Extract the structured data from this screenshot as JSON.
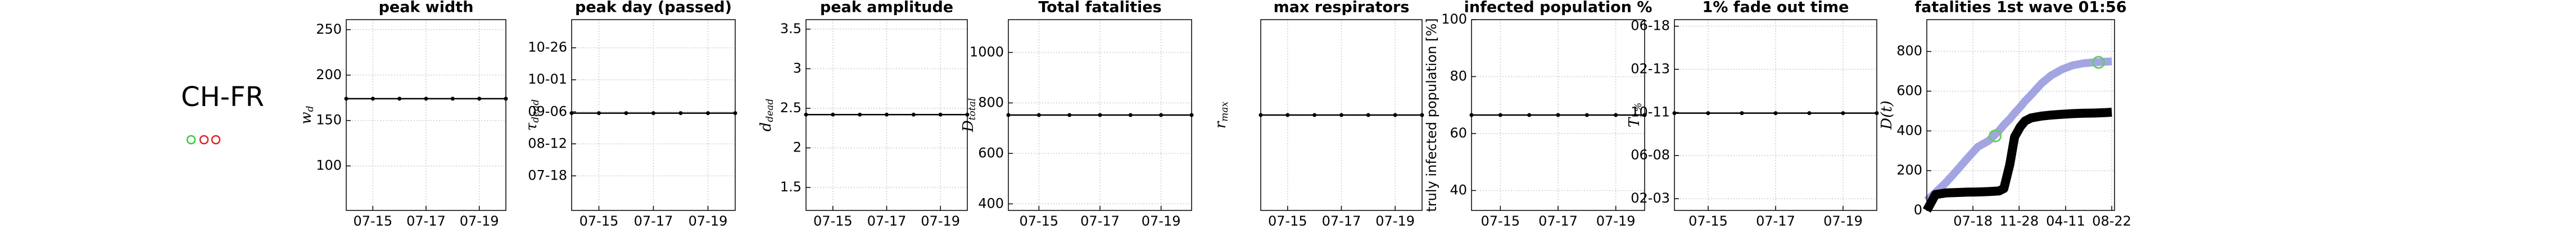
{
  "label": "CH-FR",
  "chart_data": [
    {
      "type": "line",
      "title": "peak width",
      "ylabel": [
        "w",
        "d"
      ],
      "x": [
        "07-14",
        "07-15",
        "07-16",
        "07-17",
        "07-18",
        "07-19",
        "07-20"
      ],
      "series": [
        {
          "color": "#000000",
          "markers": true,
          "values": [
            174,
            174,
            174,
            174,
            174,
            174,
            174
          ]
        }
      ],
      "xlim": [
        "07-14",
        "07-20"
      ],
      "xticks": [
        "07-15",
        "07-17",
        "07-19"
      ],
      "ylim": [
        51,
        261
      ],
      "yticks": [
        100,
        150,
        200,
        250
      ],
      "grid": true
    },
    {
      "type": "line",
      "title": "peak day (passed)",
      "ylabel": [
        "τ",
        "dead"
      ],
      "x": [
        "07-14",
        "07-15",
        "07-16",
        "07-17",
        "07-18",
        "07-19",
        "07-20"
      ],
      "series": [
        {
          "color": "#000000",
          "markers": true,
          "values": [
            "09-05",
            "09-05",
            "09-05",
            "09-05",
            "09-05",
            "09-05",
            "09-05"
          ]
        }
      ],
      "xlim": [
        "07-14",
        "07-20"
      ],
      "xticks": [
        "07-15",
        "07-17",
        "07-19"
      ],
      "ylim": [
        "06-21",
        "11-17"
      ],
      "yticks": [
        "07-18",
        "08-12",
        "09-06",
        "10-01",
        "10-26"
      ],
      "grid": true
    },
    {
      "type": "line",
      "title": "peak amplitude",
      "ylabel": [
        "d",
        "dead"
      ],
      "x": [
        "07-14",
        "07-15",
        "07-16",
        "07-17",
        "07-18",
        "07-19",
        "07-20"
      ],
      "series": [
        {
          "color": "#000000",
          "markers": true,
          "values": [
            2.42,
            2.42,
            2.42,
            2.42,
            2.42,
            2.42,
            2.42
          ]
        }
      ],
      "xlim": [
        "07-14",
        "07-20"
      ],
      "xticks": [
        "07-15",
        "07-17",
        "07-19"
      ],
      "ylim": [
        1.21,
        3.62
      ],
      "yticks": [
        1.5,
        2,
        2.5,
        3,
        3.5
      ],
      "grid": true
    },
    {
      "type": "line",
      "title": "Total fatalities",
      "ylabel": [
        "D",
        "total"
      ],
      "x": [
        "07-14",
        "07-15",
        "07-16",
        "07-17",
        "07-18",
        "07-19",
        "07-20"
      ],
      "series": [
        {
          "color": "#000000",
          "markers": true,
          "values": [
            752,
            752,
            752,
            752,
            752,
            752,
            752
          ]
        }
      ],
      "xlim": [
        "07-14",
        "07-20"
      ],
      "xticks": [
        "07-15",
        "07-17",
        "07-19"
      ],
      "ylim": [
        374,
        1130
      ],
      "yticks": [
        400,
        600,
        800,
        1000
      ],
      "grid": true
    },
    {
      "type": "line",
      "title": "max respirators",
      "ylabel": [
        "r",
        "max"
      ],
      "x": [
        "07-14",
        "07-15",
        "07-16",
        "07-17",
        "07-18",
        "07-19",
        "07-20"
      ],
      "series": [
        {
          "color": "#000000",
          "markers": true,
          "values": [
            0.5,
            0.5,
            0.5,
            0.5,
            0.5,
            0.5,
            0.5
          ]
        }
      ],
      "xlim": [
        "07-14",
        "07-20"
      ],
      "xticks": [
        "07-15",
        "07-17",
        "07-19"
      ],
      "ylim": [
        0,
        1
      ],
      "yticks": [],
      "grid": true
    },
    {
      "type": "line",
      "title": "infected population %",
      "ylabel": [
        "truly infected population [%]"
      ],
      "x": [
        "07-14",
        "07-15",
        "07-16",
        "07-17",
        "07-18",
        "07-19",
        "07-20"
      ],
      "series": [
        {
          "color": "#000000",
          "markers": true,
          "values": [
            66.5,
            66.5,
            66.5,
            66.5,
            66.5,
            66.5,
            66.5
          ]
        }
      ],
      "xlim": [
        "07-14",
        "07-20"
      ],
      "xticks": [
        "07-15",
        "07-17",
        "07-19"
      ],
      "ylim": [
        33,
        100
      ],
      "yticks": [
        40,
        60,
        80,
        100
      ],
      "grid": true
    },
    {
      "type": "line",
      "title": "1% fade out time",
      "ylabel": [
        "T",
        "1%"
      ],
      "x": [
        "07-14",
        "07-15",
        "07-16",
        "07-17",
        "07-18",
        "07-19",
        "07-20"
      ],
      "series": [
        {
          "color": "#000000",
          "markers": true,
          "values": [
            "10-09",
            "10-09",
            "10-09",
            "10-09",
            "10-09",
            "10-09",
            "10-09"
          ]
        }
      ],
      "xlim": [
        "07-14",
        "07-20"
      ],
      "xticks": [
        "07-15",
        "07-17",
        "07-19"
      ],
      "ylim": [
        "12-31",
        "07-07"
      ],
      "yticks": [
        "02-03",
        "06-08",
        "10-11",
        "02-13",
        "06-18"
      ],
      "grid": true
    },
    {
      "type": "line",
      "title": "fatalities 1st wave 01:56",
      "ylabel": [
        "D(t)"
      ],
      "x": [
        "03-07",
        "04-01",
        "05-01",
        "06-01",
        "07-01",
        "08-01",
        "09-01",
        "10-01",
        "10-15",
        "11-01",
        "11-15",
        "12-01",
        "12-15",
        "01-01",
        "02-01",
        "03-01",
        "04-01",
        "05-01",
        "06-01",
        "07-01",
        "08-01",
        "08-22"
      ],
      "series": [
        {
          "color": "#8c8fdc",
          "values": [
            50,
            90,
            140,
            200,
            260,
            320,
            350,
            400,
            430,
            460,
            490,
            520,
            550,
            580,
            640,
            680,
            710,
            730,
            740,
            745,
            748,
            750
          ]
        },
        {
          "color": "#000000",
          "values": [
            0,
            80,
            88,
            90,
            92,
            93,
            95,
            98,
            110,
            230,
            370,
            420,
            450,
            465,
            475,
            480,
            484,
            487,
            489,
            490,
            492,
            494
          ]
        }
      ],
      "scatter": {
        "color": "#66cc66",
        "x": [
          "09-20",
          "07-15"
        ],
        "values": [
          375,
          745
        ]
      },
      "xlim": [
        "03-07",
        "08-30"
      ],
      "xticks": [
        "07-18",
        "11-28",
        "04-11",
        "08-22"
      ],
      "ylim": [
        0,
        960
      ],
      "yticks": [
        0,
        200,
        400,
        600,
        800
      ],
      "grid": true
    }
  ]
}
